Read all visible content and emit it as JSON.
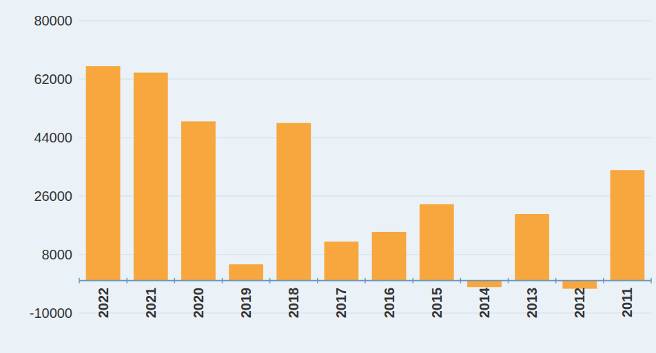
{
  "chart_data": {
    "type": "bar",
    "categories": [
      "2022",
      "2021",
      "2020",
      "2019",
      "2018",
      "2017",
      "2016",
      "2015",
      "2014",
      "2013",
      "2012",
      "2011"
    ],
    "values": [
      66000,
      64000,
      49000,
      5000,
      48500,
      12000,
      15000,
      23500,
      -2000,
      20500,
      -2500,
      34000
    ],
    "color": "#f7a73e",
    "ylim": [
      -10000,
      80000
    ],
    "yticks": [
      -10000,
      8000,
      26000,
      44000,
      62000,
      80000
    ],
    "grid": true
  }
}
